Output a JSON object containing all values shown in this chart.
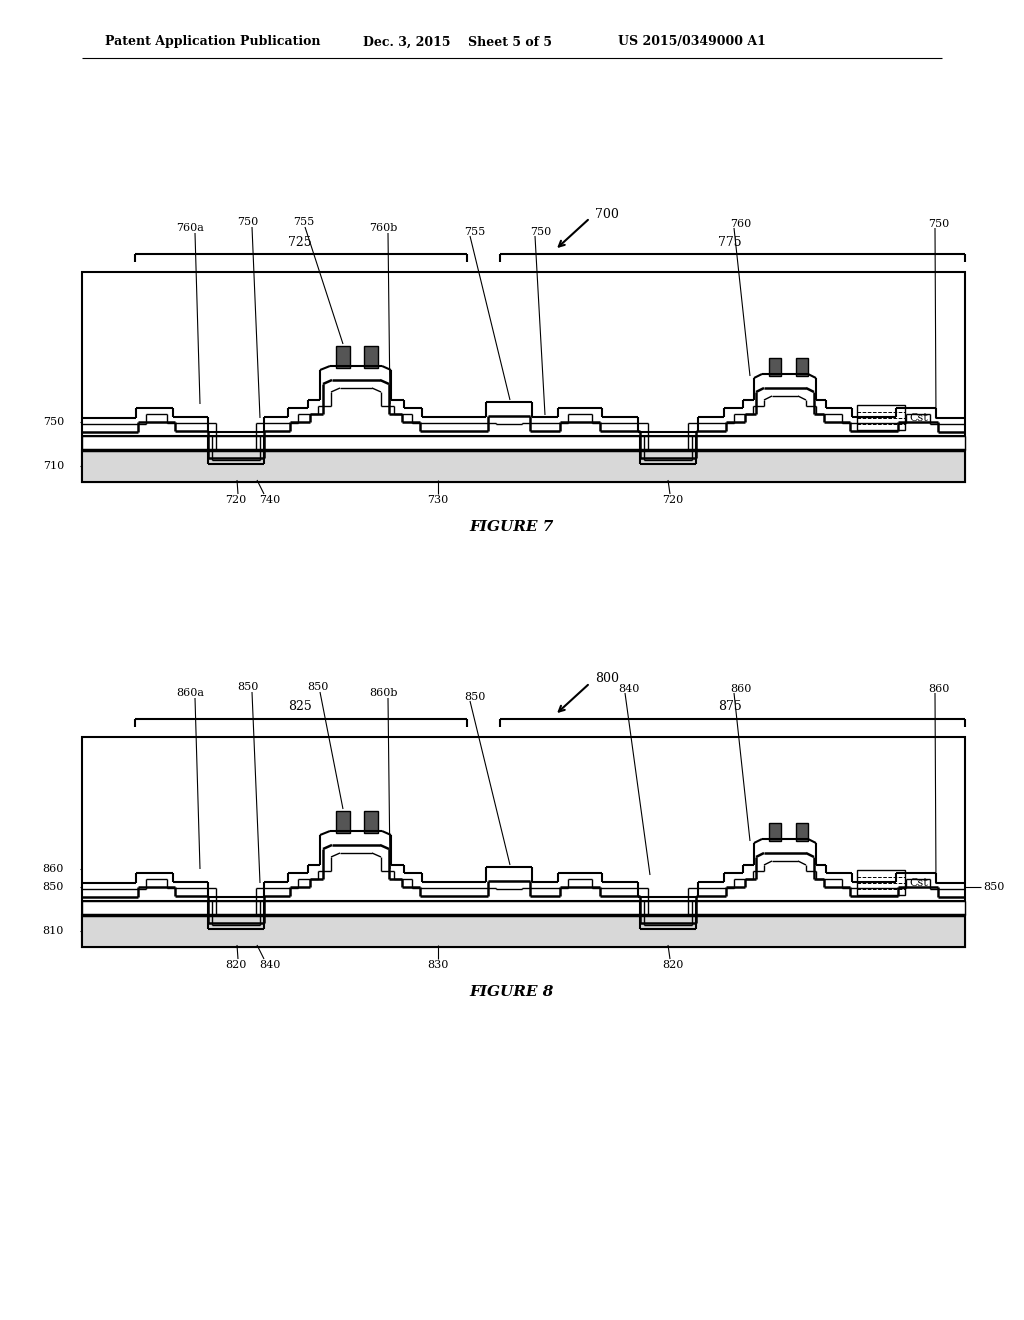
{
  "bg_color": "#ffffff",
  "header_left": "Patent Application Publication",
  "header_mid1": "Dec. 3, 2015",
  "header_mid2": "Sheet 5 of 5",
  "header_right": "US 2015/0349000 A1",
  "fig7_title": "FIGURE 7",
  "fig8_title": "FIGURE 8",
  "line_color": "#000000"
}
